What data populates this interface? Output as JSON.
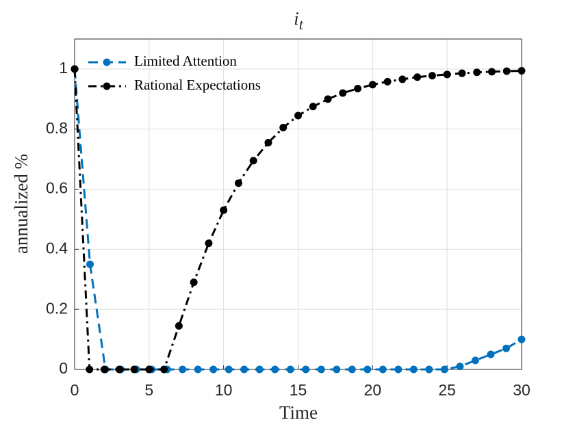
{
  "chart_data": {
    "type": "line",
    "title": "i",
    "title_subscript": "t",
    "xlabel": "Time",
    "ylabel": "annualized %",
    "xlim": [
      0,
      30
    ],
    "ylim": [
      0,
      1.1
    ],
    "xticks": [
      0,
      5,
      10,
      15,
      20,
      25,
      30
    ],
    "yticks": [
      0,
      0.2,
      0.4,
      0.6,
      0.8,
      1
    ],
    "grid": true,
    "legend": "upper left",
    "series": [
      {
        "name": "Limited Attention",
        "color": "#0072bd",
        "dash": "dashed",
        "x": [
          0,
          1.0345,
          2.069,
          3.1034,
          4.1379,
          5.1724,
          6.2069,
          7.2414,
          8.2759,
          9.3103,
          10.3448,
          11.3793,
          12.4138,
          13.4483,
          14.4828,
          15.5172,
          16.5517,
          17.5862,
          18.6207,
          19.6552,
          20.6897,
          21.7241,
          22.7586,
          23.7931,
          24.8276,
          25.8621,
          26.8966,
          27.931,
          28.9655,
          30
        ],
        "values": [
          1,
          0.35,
          0,
          0,
          0,
          0,
          0,
          0,
          0,
          0,
          0,
          0,
          0,
          0,
          0,
          0,
          0,
          0,
          0,
          0,
          0,
          0,
          0,
          0,
          0,
          0.01,
          0.03,
          0.05,
          0.07,
          0.1
        ]
      },
      {
        "name": "Rational Expectations",
        "color": "#000000",
        "dash": "dashdot",
        "x": [
          0,
          1,
          2,
          3,
          4,
          5,
          6,
          7,
          8,
          9,
          10,
          11,
          12,
          13,
          14,
          15,
          16,
          17,
          18,
          19,
          20,
          21,
          22,
          23,
          24,
          25,
          26,
          27,
          28,
          29,
          30
        ],
        "values": [
          1,
          0,
          0,
          0,
          0,
          0,
          0,
          0.145,
          0.29,
          0.42,
          0.53,
          0.62,
          0.695,
          0.755,
          0.805,
          0.845,
          0.875,
          0.9,
          0.92,
          0.935,
          0.948,
          0.958,
          0.966,
          0.973,
          0.978,
          0.982,
          0.986,
          0.989,
          0.991,
          0.993,
          0.994
        ]
      }
    ]
  }
}
